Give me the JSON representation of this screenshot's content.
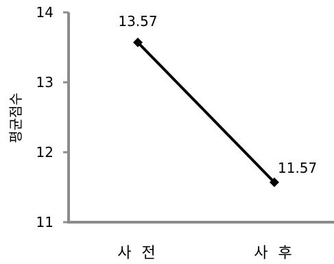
{
  "chart_data": {
    "type": "line",
    "categories": [
      "사 전",
      "사 후"
    ],
    "series": [
      {
        "values": [
          13.57,
          11.57
        ]
      }
    ],
    "data_labels": [
      "13.57",
      "11.57"
    ],
    "ylabel": "평균점수",
    "ylim": [
      11,
      14
    ],
    "yticks": [
      11,
      12,
      13,
      14
    ],
    "ytick_labels": [
      "11",
      "12",
      "13",
      "14"
    ],
    "grid": false,
    "legend": "none",
    "colors": {
      "line": "#000000",
      "axis": "#8c8c8c"
    }
  }
}
